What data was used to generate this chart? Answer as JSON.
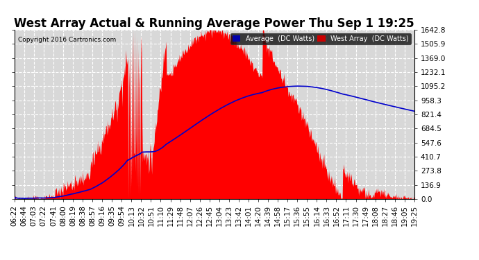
{
  "title": "West Array Actual & Running Average Power Thu Sep 1 19:25",
  "copyright": "Copyright 2016 Cartronics.com",
  "legend_avg": "Average  (DC Watts)",
  "legend_west": "West Array  (DC Watts)",
  "ylabel_right": [
    "0.0",
    "136.9",
    "273.8",
    "410.7",
    "547.6",
    "684.5",
    "821.4",
    "958.3",
    "1095.2",
    "1232.1",
    "1369.0",
    "1505.9",
    "1642.8"
  ],
  "ymax": 1642.8,
  "ymin": 0.0,
  "yticks": [
    0.0,
    136.9,
    273.8,
    410.7,
    547.6,
    684.5,
    821.4,
    958.3,
    1095.2,
    1232.1,
    1369.0,
    1505.9,
    1642.8
  ],
  "background_color": "#ffffff",
  "plot_bg_color": "#d8d8d8",
  "grid_color": "#ffffff",
  "red_color": "#ff0000",
  "blue_color": "#0000cc",
  "legend_avg_bg": "#0000aa",
  "legend_west_bg": "#cc0000",
  "title_fontsize": 12,
  "tick_fontsize": 7.5,
  "xtick_labels": [
    "06:22",
    "06:44",
    "07:03",
    "07:22",
    "07:41",
    "08:00",
    "08:19",
    "08:38",
    "08:57",
    "09:16",
    "09:35",
    "09:54",
    "10:13",
    "10:32",
    "10:51",
    "11:10",
    "11:29",
    "11:48",
    "12:07",
    "12:26",
    "12:45",
    "13:04",
    "13:23",
    "13:42",
    "14:01",
    "14:20",
    "14:39",
    "14:58",
    "15:17",
    "15:36",
    "15:55",
    "16:14",
    "16:33",
    "16:52",
    "17:11",
    "17:30",
    "17:49",
    "18:08",
    "18:27",
    "18:46",
    "19:05",
    "19:25"
  ]
}
